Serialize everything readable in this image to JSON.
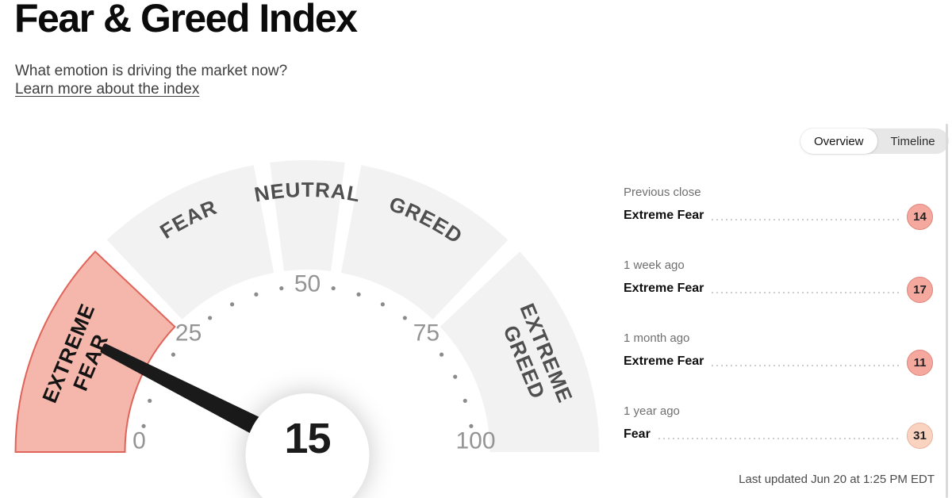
{
  "header": {
    "title": "Fear & Greed Index",
    "subtitle": "What emotion is driving the market now?",
    "link": "Learn more about the index"
  },
  "view_toggle": {
    "options": [
      "Overview",
      "Timeline"
    ],
    "selected": "Overview"
  },
  "history": [
    {
      "period": "Previous close",
      "rating": "Extreme Fear",
      "value": "14",
      "tone": "extreme-fear"
    },
    {
      "period": "1 week ago",
      "rating": "Extreme Fear",
      "value": "17",
      "tone": "extreme-fear"
    },
    {
      "period": "1 month ago",
      "rating": "Extreme Fear",
      "value": "11",
      "tone": "extreme-fear"
    },
    {
      "period": "1 year ago",
      "rating": "Fear",
      "value": "31",
      "tone": "fear"
    }
  ],
  "tones": {
    "extreme-fear": {
      "fill": "#f5a99e",
      "border": "#e0837a"
    },
    "fear": {
      "fill": "#f9d3c0",
      "border": "#eab29d"
    }
  },
  "footer": {
    "last_updated": "Last updated Jun 20 at 1:25 PM EDT"
  },
  "chart_data": {
    "type": "gauge",
    "title": "Fear & Greed Index gauge",
    "value": 15,
    "rating": "Extreme Fear",
    "range": [
      0,
      100
    ],
    "axis_labels": [
      0,
      25,
      50,
      75,
      100
    ],
    "tick_step": 5,
    "segments": [
      {
        "label": "EXTREME FEAR",
        "from": 0,
        "to": 25,
        "active": true,
        "two_line": true
      },
      {
        "label": "FEAR",
        "from": 25,
        "to": 45
      },
      {
        "label": "NEUTRAL",
        "from": 45,
        "to": 55
      },
      {
        "label": "GREED",
        "from": 55,
        "to": 75
      },
      {
        "label": "EXTREME GREED",
        "from": 75,
        "to": 100,
        "two_line": true
      }
    ],
    "colors": {
      "segment": "#f2f2f2",
      "active_fill": "#f5b6ab",
      "active_stroke": "#df645a",
      "label": "#4f4f4f",
      "active_label": "#141414",
      "tick": "#8c8c8c",
      "axis_label": "#949494",
      "needle": "#1a1a1a"
    }
  }
}
